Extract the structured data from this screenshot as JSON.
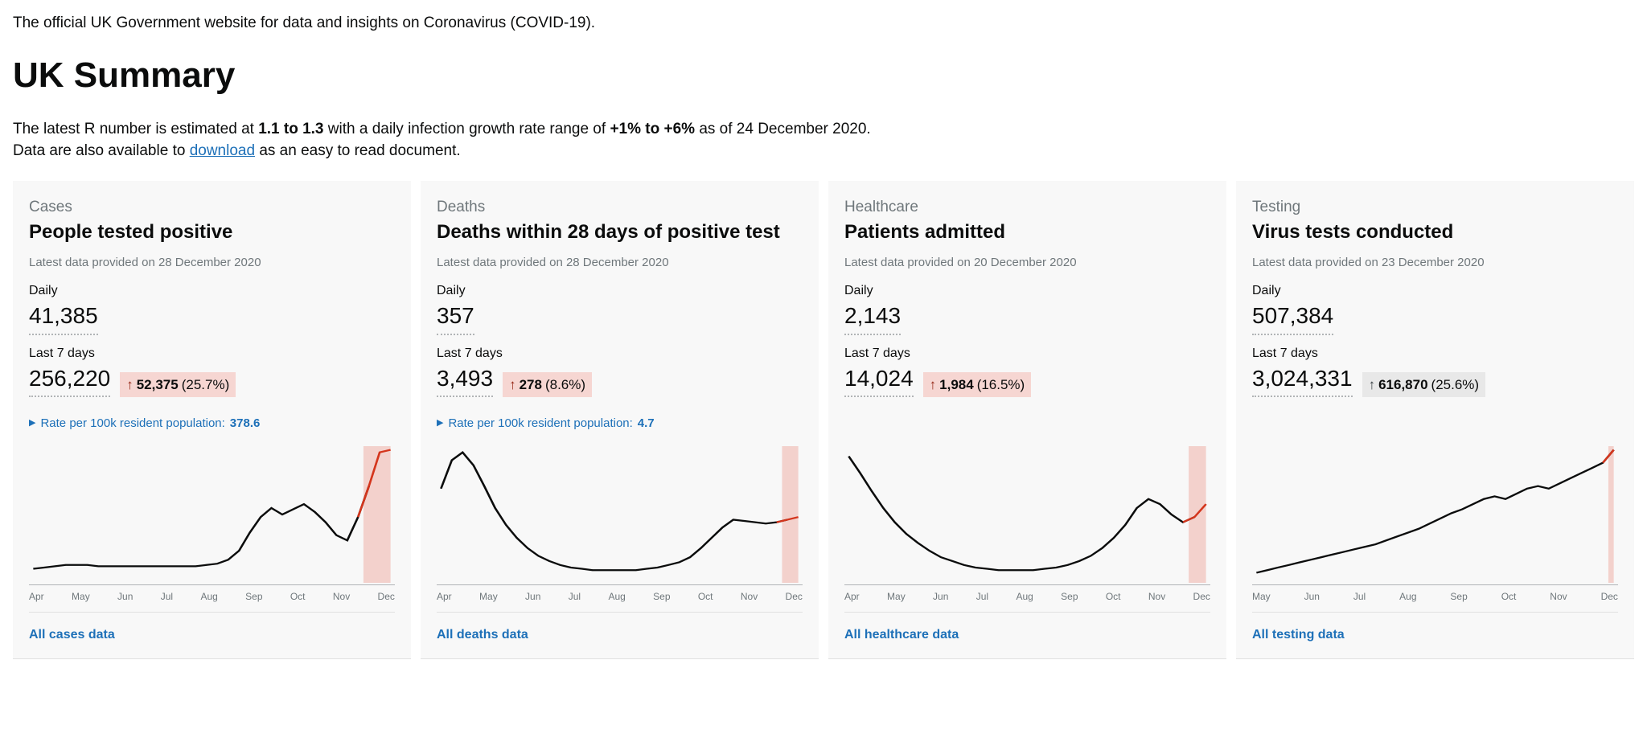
{
  "header": {
    "tagline": "The official UK Government website for data and insights on Coronavirus (COVID-19).",
    "title": "UK Summary",
    "intro_pre": "The latest R number is estimated at ",
    "r_range": "1.1 to 1.3",
    "intro_mid": " with a daily infection growth rate range of ",
    "growth_range": "+1% to +6%",
    "intro_post": " as of 24 December 2020.",
    "download_pre": "Data are also available to ",
    "download_link": "download",
    "download_post": " as an easy to read document."
  },
  "chart_style": {
    "type": "line",
    "line_color": "#0b0c0c",
    "recent_line_color": "#d4351c",
    "recent_band_color": "#f3d1cc",
    "background": "#f8f8f8",
    "line_width": 2,
    "x_labels": [
      "Apr",
      "May",
      "Jun",
      "Jul",
      "Aug",
      "Sep",
      "Oct",
      "Nov",
      "Dec"
    ],
    "x_labels_testing": [
      "May",
      "Jun",
      "Jul",
      "Aug",
      "Sep",
      "Oct",
      "Nov",
      "Dec"
    ],
    "axis_color": "#b1b4b6",
    "tick_font_size": 12
  },
  "cards": [
    {
      "id": "cases",
      "category": "Cases",
      "title": "People tested positive",
      "provided": "Latest data provided on 28 December 2020",
      "daily_label": "Daily",
      "daily_value": "41,385",
      "last7_label": "Last 7 days",
      "last7_value": "256,220",
      "delta": {
        "direction": "up",
        "value": "52,375",
        "pct": "(25.7%)",
        "style": "negative"
      },
      "rate": {
        "label": "Rate per 100k resident population:",
        "value": "378.6"
      },
      "footer_link": "All cases data",
      "series": [
        8,
        9,
        10,
        11,
        11,
        11,
        10,
        10,
        10,
        10,
        10,
        10,
        10,
        10,
        10,
        10,
        11,
        12,
        15,
        22,
        36,
        48,
        55,
        50,
        54,
        58,
        52,
        44,
        34,
        30,
        48,
        72,
        98,
        100
      ],
      "recent_count": 3,
      "ylim": [
        0,
        100
      ]
    },
    {
      "id": "deaths",
      "category": "Deaths",
      "title": "Deaths within 28 days of positive test",
      "provided": "Latest data provided on 28 December 2020",
      "daily_label": "Daily",
      "daily_value": "357",
      "last7_label": "Last 7 days",
      "last7_value": "3,493",
      "delta": {
        "direction": "up",
        "value": "278",
        "pct": "(8.6%)",
        "style": "negative"
      },
      "rate": {
        "label": "Rate per 100k resident population:",
        "value": "4.7"
      },
      "footer_link": "All deaths data",
      "series": [
        70,
        92,
        98,
        88,
        72,
        55,
        42,
        32,
        24,
        18,
        14,
        11,
        9,
        8,
        7,
        7,
        7,
        7,
        7,
        8,
        9,
        11,
        13,
        17,
        24,
        32,
        40,
        46,
        45,
        44,
        43,
        44,
        46,
        48
      ],
      "recent_count": 2,
      "ylim": [
        0,
        100
      ]
    },
    {
      "id": "healthcare",
      "category": "Healthcare",
      "title": "Patients admitted",
      "provided": "Latest data provided on 20 December 2020",
      "daily_label": "Daily",
      "daily_value": "2,143",
      "last7_label": "Last 7 days",
      "last7_value": "14,024",
      "delta": {
        "direction": "up",
        "value": "1,984",
        "pct": "(16.5%)",
        "style": "negative"
      },
      "rate": null,
      "footer_link": "All healthcare data",
      "series": [
        95,
        82,
        68,
        55,
        44,
        35,
        28,
        22,
        17,
        14,
        11,
        9,
        8,
        7,
        7,
        7,
        7,
        8,
        9,
        11,
        14,
        18,
        24,
        32,
        42,
        55,
        62,
        58,
        50,
        44,
        48,
        58
      ],
      "recent_count": 2,
      "ylim": [
        0,
        100
      ]
    },
    {
      "id": "testing",
      "category": "Testing",
      "title": "Virus tests conducted",
      "provided": "Latest data provided on 23 December 2020",
      "daily_label": "Daily",
      "daily_value": "507,384",
      "last7_label": "Last 7 days",
      "last7_value": "3,024,331",
      "delta": {
        "direction": "up",
        "value": "616,870",
        "pct": "(25.6%)",
        "style": "neutral"
      },
      "rate": null,
      "footer_link": "All testing data",
      "series": [
        5,
        7,
        9,
        11,
        13,
        15,
        17,
        19,
        21,
        23,
        25,
        27,
        30,
        33,
        36,
        39,
        43,
        47,
        51,
        54,
        58,
        62,
        64,
        62,
        66,
        70,
        72,
        70,
        74,
        78,
        82,
        86,
        90,
        100
      ],
      "recent_count": 1,
      "ylim": [
        0,
        100
      ],
      "x_labels_override": "testing"
    }
  ]
}
